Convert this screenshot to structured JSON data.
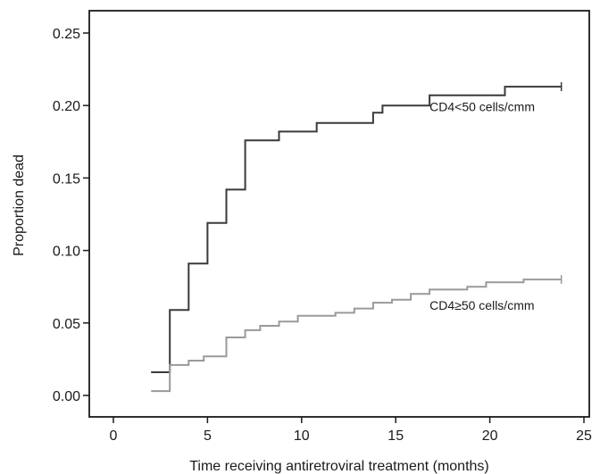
{
  "chart_data": {
    "type": "line",
    "step": true,
    "xlabel": "Time receiving antiretroviral treatment (months)",
    "ylabel": "Proportion dead",
    "xlim": [
      0,
      25
    ],
    "ylim": [
      0,
      0.25
    ],
    "xticks": [
      0,
      5,
      10,
      15,
      20,
      25
    ],
    "yticks": [
      0.0,
      0.05,
      0.1,
      0.15,
      0.2,
      0.25
    ],
    "xtick_labels": [
      "0",
      "5",
      "10",
      "15",
      "20",
      "25"
    ],
    "ytick_labels": [
      "0.00",
      "0.05",
      "0.10",
      "0.15",
      "0.20",
      "0.25"
    ],
    "grid": false,
    "series": [
      {
        "name": "CD4<50 cells/cmm",
        "color": "#3a3a3a",
        "points": [
          [
            2,
            0.016
          ],
          [
            3,
            0.016
          ],
          [
            3,
            0.059
          ],
          [
            4,
            0.059
          ],
          [
            4,
            0.091
          ],
          [
            5,
            0.091
          ],
          [
            5,
            0.119
          ],
          [
            6,
            0.119
          ],
          [
            6,
            0.142
          ],
          [
            7,
            0.142
          ],
          [
            7,
            0.176
          ],
          [
            8.8,
            0.176
          ],
          [
            8.8,
            0.182
          ],
          [
            10.8,
            0.182
          ],
          [
            10.8,
            0.188
          ],
          [
            13.8,
            0.188
          ],
          [
            13.8,
            0.195
          ],
          [
            14.3,
            0.195
          ],
          [
            14.3,
            0.2
          ],
          [
            16.8,
            0.2
          ],
          [
            16.8,
            0.207
          ],
          [
            20.8,
            0.207
          ],
          [
            20.8,
            0.213
          ],
          [
            23.8,
            0.213
          ]
        ],
        "censor_mark": [
          23.8,
          0.213
        ]
      },
      {
        "name": "CD4≥50 cells/cmm",
        "color": "#9a9a9a",
        "points": [
          [
            2,
            0.003
          ],
          [
            3,
            0.003
          ],
          [
            3,
            0.021
          ],
          [
            4,
            0.021
          ],
          [
            4,
            0.024
          ],
          [
            4.8,
            0.024
          ],
          [
            4.8,
            0.027
          ],
          [
            6,
            0.027
          ],
          [
            6,
            0.04
          ],
          [
            7,
            0.04
          ],
          [
            7,
            0.045
          ],
          [
            7.8,
            0.045
          ],
          [
            7.8,
            0.048
          ],
          [
            8.8,
            0.048
          ],
          [
            8.8,
            0.051
          ],
          [
            9.8,
            0.051
          ],
          [
            9.8,
            0.055
          ],
          [
            11.8,
            0.055
          ],
          [
            11.8,
            0.057
          ],
          [
            12.8,
            0.057
          ],
          [
            12.8,
            0.06
          ],
          [
            13.8,
            0.06
          ],
          [
            13.8,
            0.064
          ],
          [
            14.8,
            0.064
          ],
          [
            14.8,
            0.066
          ],
          [
            15.8,
            0.066
          ],
          [
            15.8,
            0.07
          ],
          [
            16.8,
            0.07
          ],
          [
            16.8,
            0.073
          ],
          [
            18.8,
            0.073
          ],
          [
            18.8,
            0.075
          ],
          [
            19.8,
            0.075
          ],
          [
            19.8,
            0.078
          ],
          [
            21.8,
            0.078
          ],
          [
            21.8,
            0.08
          ],
          [
            23.8,
            0.08
          ]
        ],
        "censor_mark": [
          23.8,
          0.08
        ]
      }
    ],
    "annotations": [
      {
        "text": "CD4<50 cells/cmm",
        "x": 16.8,
        "y": 0.196
      },
      {
        "text": "CD4≥50 cells/cmm",
        "x": 16.8,
        "y": 0.059
      }
    ]
  }
}
